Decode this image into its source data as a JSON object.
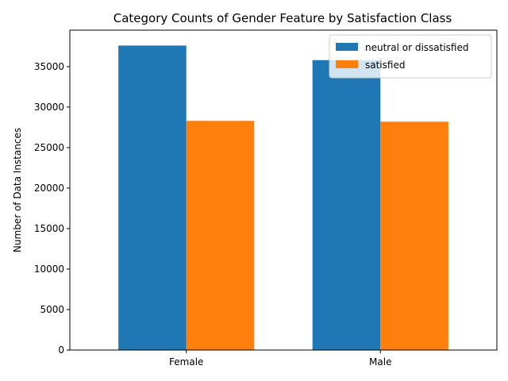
{
  "chart_data": {
    "type": "bar",
    "title": "Category Counts of Gender Feature by Satisfaction Class",
    "xlabel": "",
    "ylabel": "Number of Data Instances",
    "categories": [
      "Female",
      "Male"
    ],
    "series": [
      {
        "name": "neutral or dissatisfied",
        "values": [
          37600,
          35800
        ],
        "color": "#1f77b4"
      },
      {
        "name": "satisfied",
        "values": [
          28300,
          28200
        ],
        "color": "#ff7f0e"
      }
    ],
    "ylim": [
      0,
      39500
    ],
    "yticks": [
      0,
      5000,
      10000,
      15000,
      20000,
      25000,
      30000,
      35000
    ],
    "grid": false,
    "legend_position": "top-right"
  }
}
